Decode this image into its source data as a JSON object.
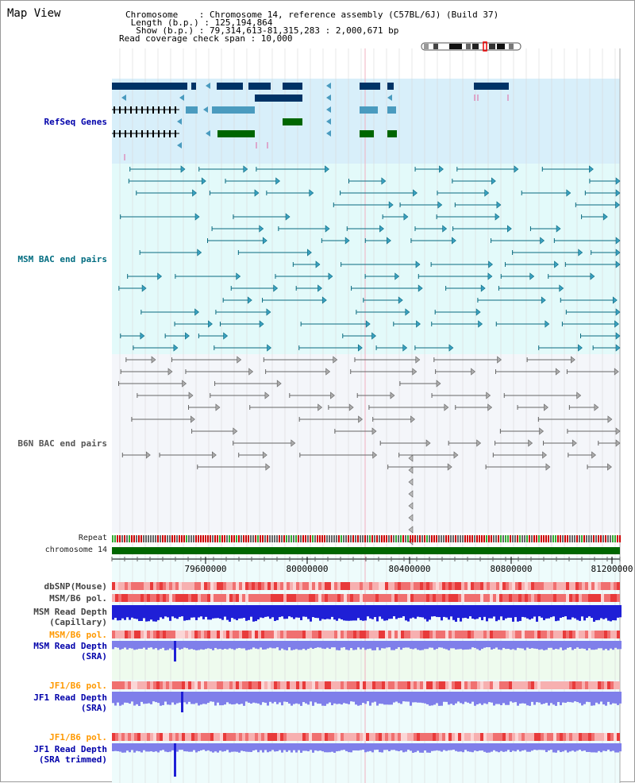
{
  "map": {
    "title": "Map View",
    "chromosome_line": "Chromosome    : Chromosome 14, reference assembly (C57BL/6J) (Build 37)",
    "length_line": " Length (b.p.) : 125,194,864",
    "show_line": "  Show (b.p.) : 79,314,613-81,315,283 : 2,000,671 bp",
    "coverage_line": "Read coverage check span : 10,000"
  },
  "tracks": {
    "refseq": "RefSeq Genes",
    "msm_bac": "MSM BAC end pairs",
    "b6n_bac": "B6N BAC end pairs",
    "repeat": "Repeat",
    "chromosome": "chromosome 14",
    "dbsnp": "dbSNP(Mouse)",
    "msm_b6_pol_1": "MSM/B6 pol.",
    "msm_depth_cap_1": "MSM Read Depth",
    "msm_depth_cap_2": "(Capillary)",
    "msm_b6_pol_2": "MSM/B6 pol.",
    "msm_depth_sra_1": "MSM Read Depth",
    "msm_depth_sra_2": "(SRA)",
    "jf1_b6_pol_1": "JF1/B6 pol.",
    "jf1_depth_sra_1": "JF1 Read Depth",
    "jf1_depth_sra_2": "(SRA)",
    "jf1_b6_pol_2": "JF1/B6 pol.",
    "jf1_depth_trim_1": "JF1 Read Depth",
    "jf1_depth_trim_2": "(SRA trimmed)"
  },
  "axis": {
    "ticks": [
      "79600000",
      "80000000",
      "80400000",
      "80800000",
      "81200000"
    ]
  },
  "colors": {
    "refseq_bg": "#d8effa",
    "msm_bg": "#e3fafa",
    "b6n_bg": "#f4f6fa",
    "gene_navy": "#003366",
    "gene_teal": "#4a9bbf",
    "gene_green": "#006600",
    "msm_line": "#0a6b80",
    "b6n_line": "#666666",
    "msm_label": "#006c80",
    "refseq_label": "#0000aa",
    "jf1_label": "#ff9900",
    "depth_blue": "#1f1fd6",
    "depth_light": "#7f7fea"
  }
}
